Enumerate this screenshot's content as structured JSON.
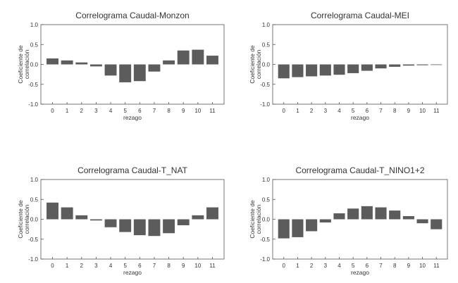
{
  "colors": {
    "bar": "#5c5c5c",
    "axis": "#555555",
    "background": "#ffffff"
  },
  "chart_data": [
    {
      "type": "bar",
      "title": "Correlograma Caudal-Monzon",
      "xlabel": "rezago",
      "ylabel": "Coeficiente de correlación",
      "categories": [
        "0",
        "1",
        "2",
        "3",
        "4",
        "5",
        "6",
        "7",
        "8",
        "9",
        "10",
        "11"
      ],
      "values": [
        0.15,
        0.1,
        0.05,
        -0.05,
        -0.28,
        -0.45,
        -0.42,
        -0.18,
        0.1,
        0.35,
        0.37,
        0.22
      ],
      "ylim": [
        -1.0,
        1.0
      ],
      "yticks": [
        {
          "v": 1.0,
          "label": "1.0"
        },
        {
          "v": 0.5,
          "label": "0.5"
        },
        {
          "v": 0.0,
          "label": "0.0"
        },
        {
          "v": -0.5,
          "label": "-0.5"
        },
        {
          "v": -1.0,
          "label": "-1.0"
        }
      ],
      "grid": false
    },
    {
      "type": "bar",
      "title": "Correlograma Caudal-MEI",
      "xlabel": "rezago",
      "ylabel": "Coeficiente de correlación",
      "categories": [
        "0",
        "1",
        "2",
        "3",
        "4",
        "5",
        "6",
        "7",
        "8",
        "9",
        "10",
        "11"
      ],
      "values": [
        -0.35,
        -0.32,
        -0.3,
        -0.28,
        -0.26,
        -0.22,
        -0.16,
        -0.1,
        -0.06,
        -0.03,
        -0.02,
        0.0
      ],
      "ylim": [
        -1.0,
        1.0
      ],
      "yticks": [
        {
          "v": 1.0,
          "label": "1.0"
        },
        {
          "v": 0.5,
          "label": "0.5"
        },
        {
          "v": 0.0,
          "label": "0.0"
        },
        {
          "v": -0.5,
          "label": "-0.5"
        },
        {
          "v": -1.0,
          "label": "-1.0"
        }
      ],
      "grid": false
    },
    {
      "type": "bar",
      "title": "Correlograma Caudal-T_NAT",
      "xlabel": "rezago",
      "ylabel": "Coeficiente de correlación",
      "categories": [
        "0",
        "1",
        "2",
        "3",
        "4",
        "5",
        "6",
        "7",
        "8",
        "9",
        "10",
        "11"
      ],
      "values": [
        0.42,
        0.3,
        0.1,
        -0.03,
        -0.2,
        -0.32,
        -0.4,
        -0.42,
        -0.35,
        -0.15,
        0.1,
        0.3
      ],
      "ylim": [
        -1.0,
        1.0
      ],
      "yticks": [
        {
          "v": 1.0,
          "label": "1.0"
        },
        {
          "v": 0.5,
          "label": "0.5"
        },
        {
          "v": 0.0,
          "label": "0.0"
        },
        {
          "v": -0.5,
          "label": "-0.5"
        },
        {
          "v": -1.0,
          "label": "-1.0"
        }
      ],
      "grid": false
    },
    {
      "type": "bar",
      "title": "Correlograma Caudal-T_NINO1+2",
      "xlabel": "rezago",
      "ylabel": "Coeficiente de correlación",
      "categories": [
        "0",
        "1",
        "2",
        "3",
        "4",
        "5",
        "6",
        "7",
        "8",
        "9",
        "10",
        "11"
      ],
      "values": [
        -0.48,
        -0.45,
        -0.3,
        -0.08,
        0.15,
        0.27,
        0.33,
        0.3,
        0.22,
        0.08,
        -0.1,
        -0.25
      ],
      "ylim": [
        -1.0,
        1.0
      ],
      "yticks": [
        {
          "v": 1.0,
          "label": "1.0"
        },
        {
          "v": 0.5,
          "label": "0.5"
        },
        {
          "v": 0.0,
          "label": "0.0"
        },
        {
          "v": -0.5,
          "label": "-0.5"
        },
        {
          "v": -1.0,
          "label": "-1.0"
        }
      ],
      "grid": false
    }
  ]
}
